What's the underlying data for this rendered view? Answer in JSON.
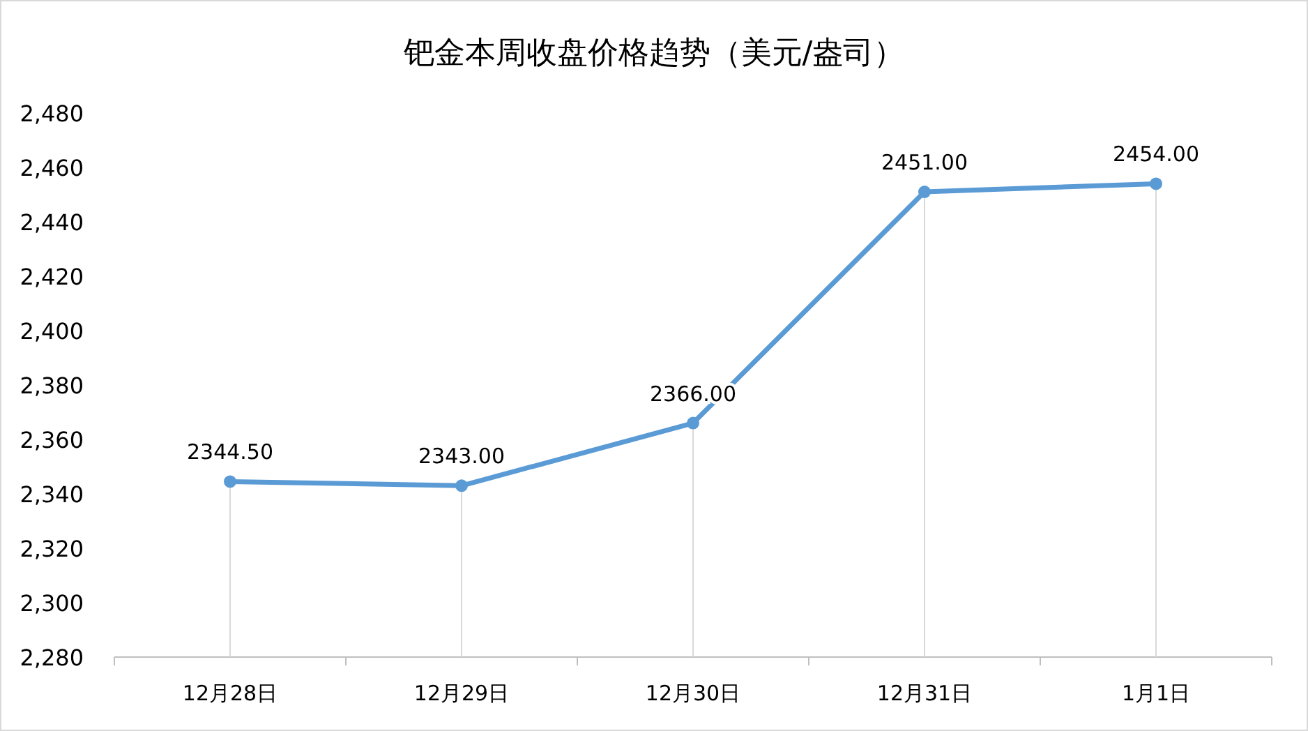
{
  "chart_data": {
    "type": "line",
    "title": "钯金本周收盘价格趋势（美元/盎司）",
    "categories": [
      "12月28日",
      "12月29日",
      "12月30日",
      "12月31日",
      "1月1日"
    ],
    "series": [
      {
        "color": "#5b9bd5",
        "values": [
          2344.5,
          2343,
          2366,
          2451,
          2454
        ],
        "value_labels": [
          "2344.50",
          "2343.00",
          "2366.00",
          "2451.00",
          "2454.00"
        ]
      }
    ],
    "ylim": [
      2280,
      2480
    ],
    "yticks": [
      {
        "value": 2280,
        "label": "2,280"
      },
      {
        "value": 2300,
        "label": "2,300"
      },
      {
        "value": 2320,
        "label": "2,320"
      },
      {
        "value": 2340,
        "label": "2,340"
      },
      {
        "value": 2360,
        "label": "2,360"
      },
      {
        "value": 2380,
        "label": "2,380"
      },
      {
        "value": 2400,
        "label": "2,400"
      },
      {
        "value": 2420,
        "label": "2,420"
      },
      {
        "value": 2440,
        "label": "2,440"
      },
      {
        "value": 2460,
        "label": "2,460"
      },
      {
        "value": 2480,
        "label": "2,480"
      }
    ],
    "marker": "circle",
    "line_style": "solid"
  }
}
